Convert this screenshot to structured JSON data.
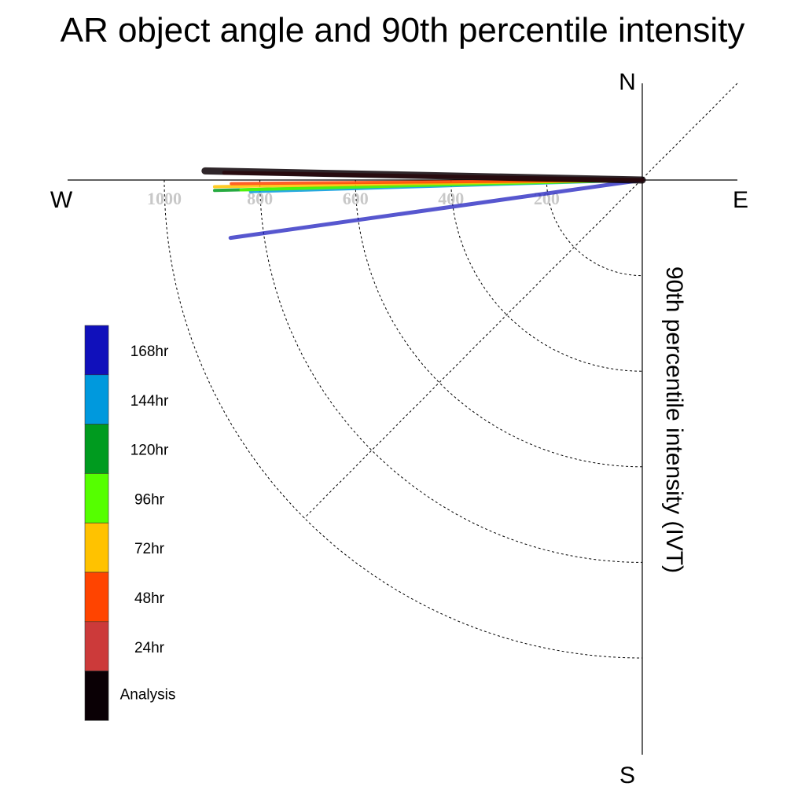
{
  "chart_data": {
    "type": "polar-quadrant",
    "title": "AR object angle and 90th percentile intensity",
    "ylabel": "90th percentile intensity (IVT)",
    "compass": {
      "north": "N",
      "south": "S",
      "east": "E",
      "west": "W"
    },
    "radial_ticks": [
      "200",
      "400",
      "600",
      "800",
      "1000"
    ],
    "radial_tick_values": [
      200,
      400,
      600,
      800,
      1000
    ],
    "rlim": [
      0,
      1000
    ],
    "angle_range_deg": [
      -90,
      0
    ],
    "grid": "dotted arcs and 45-degree diagonal",
    "legend_placement": "left-middle",
    "series": [
      {
        "name": "Analysis",
        "color": "#0a0005",
        "intensity": 915,
        "angle_deg": -1.2,
        "width": 9
      },
      {
        "name": "24hr",
        "color": "#cc3a3a",
        "intensity": 875,
        "angle_deg": -1.0,
        "width": 5
      },
      {
        "name": "48hr",
        "color": "#ff4400",
        "intensity": 860,
        "angle_deg": 0.5,
        "width": 4
      },
      {
        "name": "72hr",
        "color": "#ffc200",
        "intensity": 895,
        "angle_deg": 0.9,
        "width": 4
      },
      {
        "name": "96hr",
        "color": "#55ff00",
        "intensity": 840,
        "angle_deg": 1.4,
        "width": 4
      },
      {
        "name": "120hr",
        "color": "#009b1f",
        "intensity": 895,
        "angle_deg": 1.4,
        "width": 4
      },
      {
        "name": "144hr",
        "color": "#0099dd",
        "intensity": 820,
        "angle_deg": 1.7,
        "width": 4
      },
      {
        "name": "168hr",
        "color": "#1010bb",
        "intensity": 870,
        "angle_deg": 8.0,
        "width": 5
      }
    ],
    "legend_order": [
      "168hr",
      "144hr",
      "120hr",
      "96hr",
      "72hr",
      "48hr",
      "24hr",
      "Analysis"
    ]
  }
}
